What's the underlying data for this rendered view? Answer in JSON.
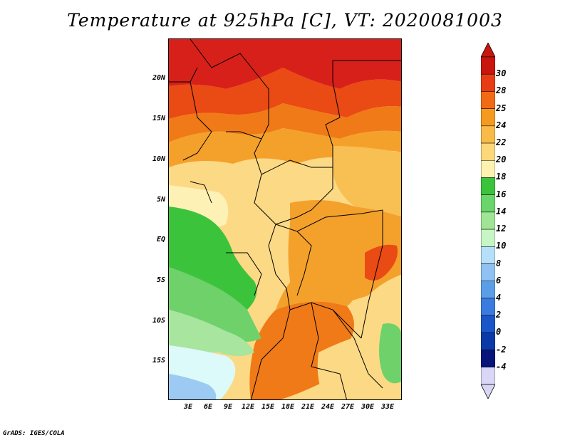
{
  "title": "Temperature at 925hPa [C], VT: 2020081003",
  "credit": "GrADS: IGES/COLA",
  "lat_labels": [
    "20N",
    "15N",
    "10N",
    "5N",
    "EQ",
    "5S",
    "10S",
    "15S"
  ],
  "lon_labels": [
    "3E",
    "6E",
    "9E",
    "12E",
    "15E",
    "18E",
    "21E",
    "24E",
    "27E",
    "30E",
    "33E"
  ],
  "colorbar": {
    "labels": [
      "30",
      "28",
      "25",
      "24",
      "22",
      "20",
      "18",
      "16",
      "14",
      "12",
      "10",
      "8",
      "6",
      "4",
      "2",
      "0",
      "-2",
      "-4"
    ],
    "colors": [
      "#c8150d",
      "#e83d14",
      "#f26a16",
      "#f59a1f",
      "#f8bb48",
      "#fcd87a",
      "#fdf2b0",
      "#3bc33b",
      "#6ad56a",
      "#a0e595",
      "#c8f5c5",
      "#b6dffa",
      "#8fc2f2",
      "#5a9ee8",
      "#3a7be0",
      "#1a56c8",
      "#0b3aa8",
      "#07147a",
      "#d9d6f6"
    ],
    "top_color": "#c8150d",
    "bottom_color": "#d9d6f6"
  },
  "map_colors": {
    "hot_30": "#d8201b",
    "c28": "#ea4a13",
    "c25": "#f07a18",
    "c24": "#f4a12c",
    "c22": "#f8bf52",
    "c20": "#fcd985",
    "c18": "#fdf1b5",
    "c16": "#3cc33c",
    "c14": "#6ed16a",
    "c12": "#a8e59e",
    "c10": "#dcfafa",
    "c8": "#9ccaf2"
  }
}
